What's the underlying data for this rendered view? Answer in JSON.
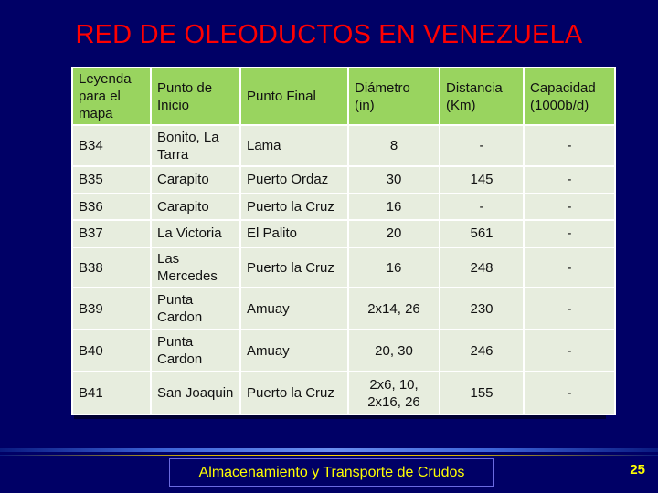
{
  "title": "RED DE OLEODUCTOS EN VENEZUELA",
  "table": {
    "headers": [
      "Leyenda para el mapa",
      "Punto de Inicio",
      "Punto Final",
      "Diámetro (in)",
      "Distancia (Km)",
      "Capacidad (1000b/d)"
    ],
    "rows": [
      [
        "B34",
        "Bonito, La Tarra",
        "Lama",
        "8",
        "-",
        "-"
      ],
      [
        "B35",
        "Carapito",
        "Puerto Ordaz",
        "30",
        "145",
        "-"
      ],
      [
        "B36",
        "Carapito",
        "Puerto la Cruz",
        "16",
        "-",
        "-"
      ],
      [
        "B37",
        "La Victoria",
        "El Palito",
        "20",
        "561",
        "-"
      ],
      [
        "B38",
        "Las Mercedes",
        "Puerto la Cruz",
        "16",
        "248",
        "-"
      ],
      [
        "B39",
        "Punta Cardon",
        "Amuay",
        "2x14, 26",
        "230",
        "-"
      ],
      [
        "B40",
        "Punta Cardon",
        "Amuay",
        "20, 30",
        "246",
        "-"
      ],
      [
        "B41",
        "San Joaquin",
        "Puerto la Cruz",
        "2x6, 10, 2x16, 26",
        "155",
        "-"
      ]
    ]
  },
  "footer": "Almacenamiento y Transporte de Crudos",
  "page_number": "25",
  "colors": {
    "background": "#000066",
    "title": "#ff0000",
    "header_fill": "#99d45f",
    "row_fill": "#e7edde",
    "footer_text": "#ffff00"
  }
}
